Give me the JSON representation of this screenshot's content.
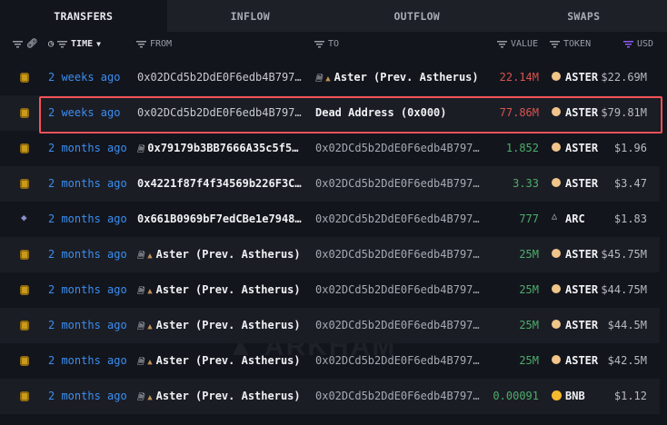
{
  "tabs": [
    {
      "label": "TRANSFERS",
      "active": true
    },
    {
      "label": "INFLOW"
    },
    {
      "label": "OUTFLOW"
    },
    {
      "label": "SWAPS"
    }
  ],
  "columns": {
    "time": "TIME",
    "from": "FROM",
    "to": "TO",
    "value": "VALUE",
    "token": "TOKEN",
    "usd": "USD"
  },
  "watermark": "ARKHAM",
  "colors": {
    "time": "#3a8ef0",
    "outflow_value": "#d9534f",
    "inflow_value": "#4cae6a",
    "highlight": "#f4525a",
    "usd_filter": "#8a5cf0"
  },
  "rows": [
    {
      "chain": "bnb-chain-icon",
      "time": "2 weeks ago",
      "from": "0x02DCd5b2DdE0F6edb4B797…",
      "to": "Aster (Prev. Astherus)",
      "value": "22.14M",
      "dir": "out",
      "token": "ASTER",
      "usd": "$22.69M"
    },
    {
      "chain": "bnb-chain-icon",
      "time": "2 weeks ago",
      "from": "0x02DCd5b2DdE0F6edb4B797…",
      "to": "Dead Address (0x000)",
      "value": "77.86M",
      "dir": "out",
      "token": "ASTER",
      "usd": "$79.81M",
      "highlighted": true
    },
    {
      "chain": "bnb-chain-icon",
      "time": "2 months ago",
      "from": "0x79179b3BB7666A35c5f5…",
      "to": "0x02DCd5b2DdE0F6edb4B797…",
      "value": "1.852",
      "dir": "in",
      "token": "ASTER",
      "usd": "$1.96"
    },
    {
      "chain": "bnb-chain-icon",
      "time": "2 months ago",
      "from": "0x4221f87f4f34569b226F3C…",
      "to": "0x02DCd5b2DdE0F6edb4B797…",
      "value": "3.33",
      "dir": "in",
      "token": "ASTER",
      "usd": "$3.47"
    },
    {
      "chain": "ethereum-chain-icon",
      "time": "2 months ago",
      "from": "0x661B0969bF7edCBe1e7948…",
      "to": "0x02DCd5b2DdE0F6edb4B797…",
      "value": "777",
      "dir": "in",
      "token": "ARC",
      "usd": "$1.83"
    },
    {
      "chain": "bnb-chain-icon",
      "time": "2 months ago",
      "from": "Aster (Prev. Astherus)",
      "to": "0x02DCd5b2DdE0F6edb4B797…",
      "value": "25M",
      "dir": "in",
      "token": "ASTER",
      "usd": "$45.75M"
    },
    {
      "chain": "bnb-chain-icon",
      "time": "2 months ago",
      "from": "Aster (Prev. Astherus)",
      "to": "0x02DCd5b2DdE0F6edb4B797…",
      "value": "25M",
      "dir": "in",
      "token": "ASTER",
      "usd": "$44.75M"
    },
    {
      "chain": "bnb-chain-icon",
      "time": "2 months ago",
      "from": "Aster (Prev. Astherus)",
      "to": "0x02DCd5b2DdE0F6edb4B797…",
      "value": "25M",
      "dir": "in",
      "token": "ASTER",
      "usd": "$44.5M"
    },
    {
      "chain": "bnb-chain-icon",
      "time": "2 months ago",
      "from": "Aster (Prev. Astherus)",
      "to": "0x02DCd5b2DdE0F6edb4B797…",
      "value": "25M",
      "dir": "in",
      "token": "ASTER",
      "usd": "$42.5M"
    },
    {
      "chain": "bnb-chain-icon",
      "time": "2 months ago",
      "from": "Aster (Prev. Astherus)",
      "to": "0x02DCd5b2DdE0F6edb4B797…",
      "value": "0.00091",
      "dir": "in",
      "token": "BNB",
      "usd": "$1.12"
    }
  ]
}
